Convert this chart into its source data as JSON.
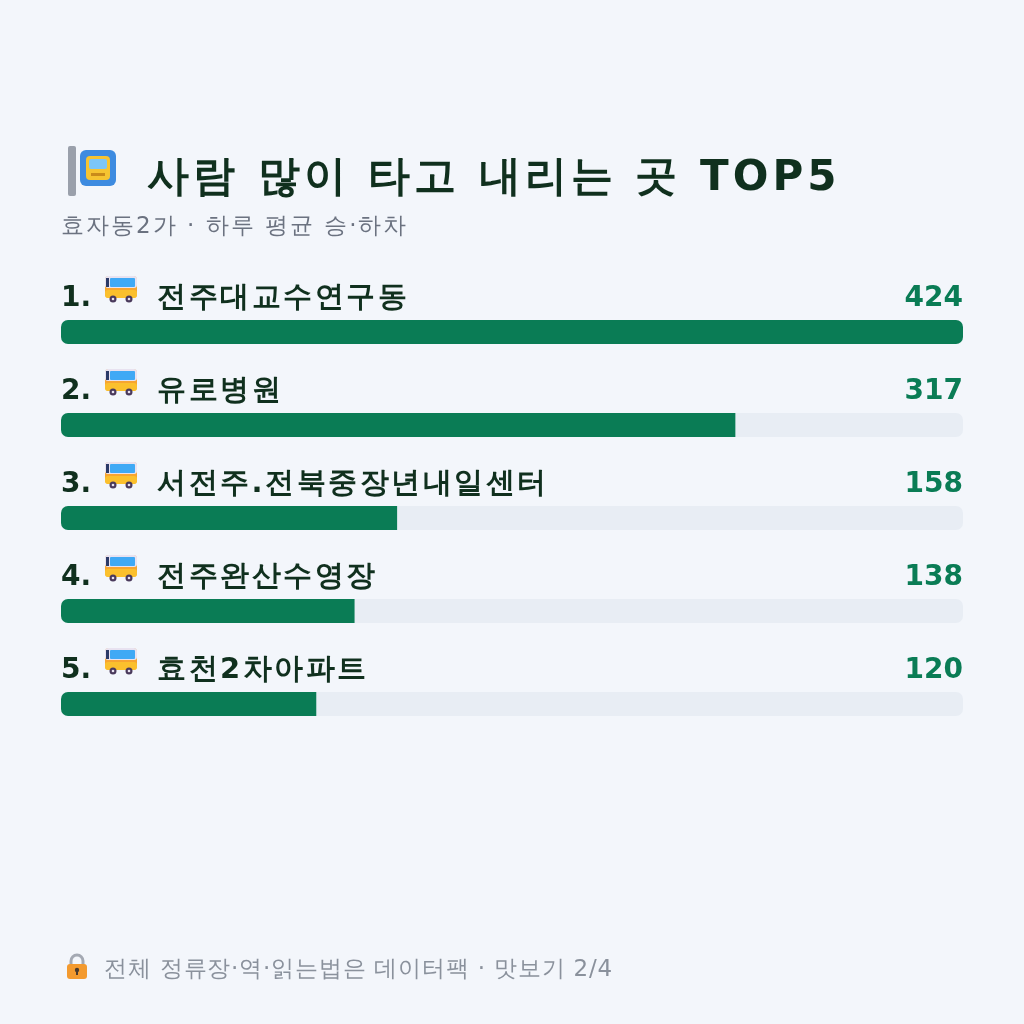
{
  "chart_data": {
    "type": "bar",
    "orientation": "horizontal",
    "title": "사람 많이 타고 내리는 곳 TOP5",
    "subtitle": "효자동2가 · 하루 평균 승·하차",
    "categories": [
      "1. 전주대교수연구동",
      "2. 유로병원",
      "3. 서전주.전북중장년내일센터",
      "4. 전주완산수영장",
      "5. 효천2차아파트"
    ],
    "values": [
      424,
      317,
      158,
      138,
      120
    ],
    "color": "#0a7c55",
    "data_labels": true,
    "annotations": [
      "전체 정류장·역·읽는법은 데이터팩 · 맛보기 2/4"
    ]
  }
}
